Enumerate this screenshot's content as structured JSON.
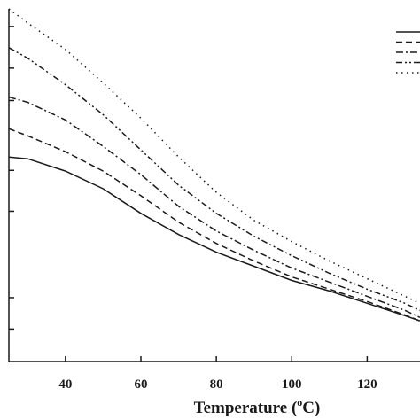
{
  "chart_data": {
    "type": "line",
    "xlabel": "Temperature (°C)",
    "xlabel_parts": {
      "before": "Temperature (",
      "sup": "o",
      "after": "C)"
    },
    "xlim": [
      25,
      134
    ],
    "xticks": [
      40,
      60,
      80,
      100,
      120
    ],
    "y_tick_positions": [
      0.092,
      0.181,
      0.426,
      0.542,
      0.74,
      0.832,
      0.95
    ],
    "grid": false,
    "legend": {
      "position": "top-right",
      "entries": [
        "",
        "",
        "",
        "",
        ""
      ]
    },
    "series": [
      {
        "style": "solid",
        "x": [
          25,
          30,
          40,
          50,
          60,
          70,
          80,
          90,
          100,
          110,
          120,
          130,
          134
        ],
        "y": [
          0.58,
          0.575,
          0.54,
          0.49,
          0.42,
          0.36,
          0.31,
          0.27,
          0.23,
          0.2,
          0.165,
          0.13,
          0.115
        ]
      },
      {
        "style": "dashed",
        "x": [
          25,
          30,
          40,
          50,
          60,
          70,
          80,
          90,
          100,
          110,
          120,
          130,
          134
        ],
        "y": [
          0.66,
          0.64,
          0.595,
          0.54,
          0.47,
          0.395,
          0.335,
          0.285,
          0.24,
          0.205,
          0.17,
          0.132,
          0.115
        ]
      },
      {
        "style": "dash-dot",
        "x": [
          25,
          30,
          40,
          50,
          60,
          70,
          80,
          90,
          100,
          110,
          120,
          130,
          134
        ],
        "y": [
          0.75,
          0.735,
          0.685,
          0.61,
          0.53,
          0.44,
          0.37,
          0.315,
          0.265,
          0.225,
          0.185,
          0.145,
          0.125
        ]
      },
      {
        "style": "dash-dot-dot",
        "x": [
          25,
          30,
          40,
          50,
          60,
          70,
          80,
          90,
          100,
          110,
          120,
          130,
          134
        ],
        "y": [
          0.89,
          0.86,
          0.785,
          0.7,
          0.6,
          0.5,
          0.42,
          0.355,
          0.3,
          0.25,
          0.205,
          0.165,
          0.145
        ]
      },
      {
        "style": "dotted",
        "x": [
          25,
          30,
          40,
          50,
          60,
          70,
          80,
          90,
          100,
          110,
          120,
          130,
          134
        ],
        "y": [
          1.0,
          0.96,
          0.885,
          0.79,
          0.69,
          0.58,
          0.48,
          0.4,
          0.34,
          0.285,
          0.235,
          0.185,
          0.165
        ]
      }
    ]
  }
}
